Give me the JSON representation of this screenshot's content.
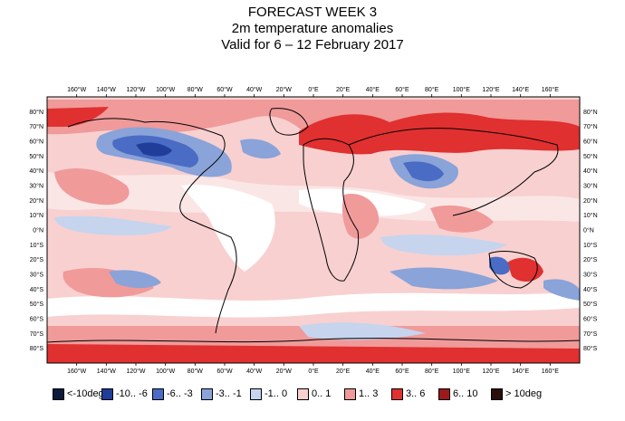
{
  "title": {
    "line1": "FORECAST WEEK 3",
    "line2": "2m temperature anomalies",
    "line3": "Valid for 6 – 12 February 2017"
  },
  "lon_ticks": [
    "160°W",
    "140°W",
    "120°W",
    "100°W",
    "80°W",
    "60°W",
    "40°W",
    "20°W",
    "0°E",
    "20°E",
    "40°E",
    "60°E",
    "80°E",
    "100°E",
    "120°E",
    "140°E",
    "160°E"
  ],
  "lat_ticks": [
    "80°N",
    "70°N",
    "60°N",
    "50°N",
    "40°N",
    "30°N",
    "20°N",
    "10°N",
    "0°N",
    "10°S",
    "20°S",
    "30°S",
    "40°S",
    "50°S",
    "60°S",
    "70°S",
    "80°S"
  ],
  "legend": [
    {
      "label": "<-10deg",
      "color": "#0a1a3c"
    },
    {
      "label": "-10.. -6",
      "color": "#1f3d99"
    },
    {
      "label": "-6.. -3",
      "color": "#4a6cc4"
    },
    {
      "label": "-3.. -1",
      "color": "#8aa3d9"
    },
    {
      "label": "-1.. 0",
      "color": "#c6d4ee"
    },
    {
      "label": "0.. 1",
      "color": "#f8d0d0"
    },
    {
      "label": "1.. 3",
      "color": "#f09a9a"
    },
    {
      "label": "3.. 6",
      "color": "#e03030"
    },
    {
      "label": "6.. 10",
      "color": "#9c1a1a"
    },
    {
      "label": "> 10deg",
      "color": "#2a0f0a"
    }
  ]
}
